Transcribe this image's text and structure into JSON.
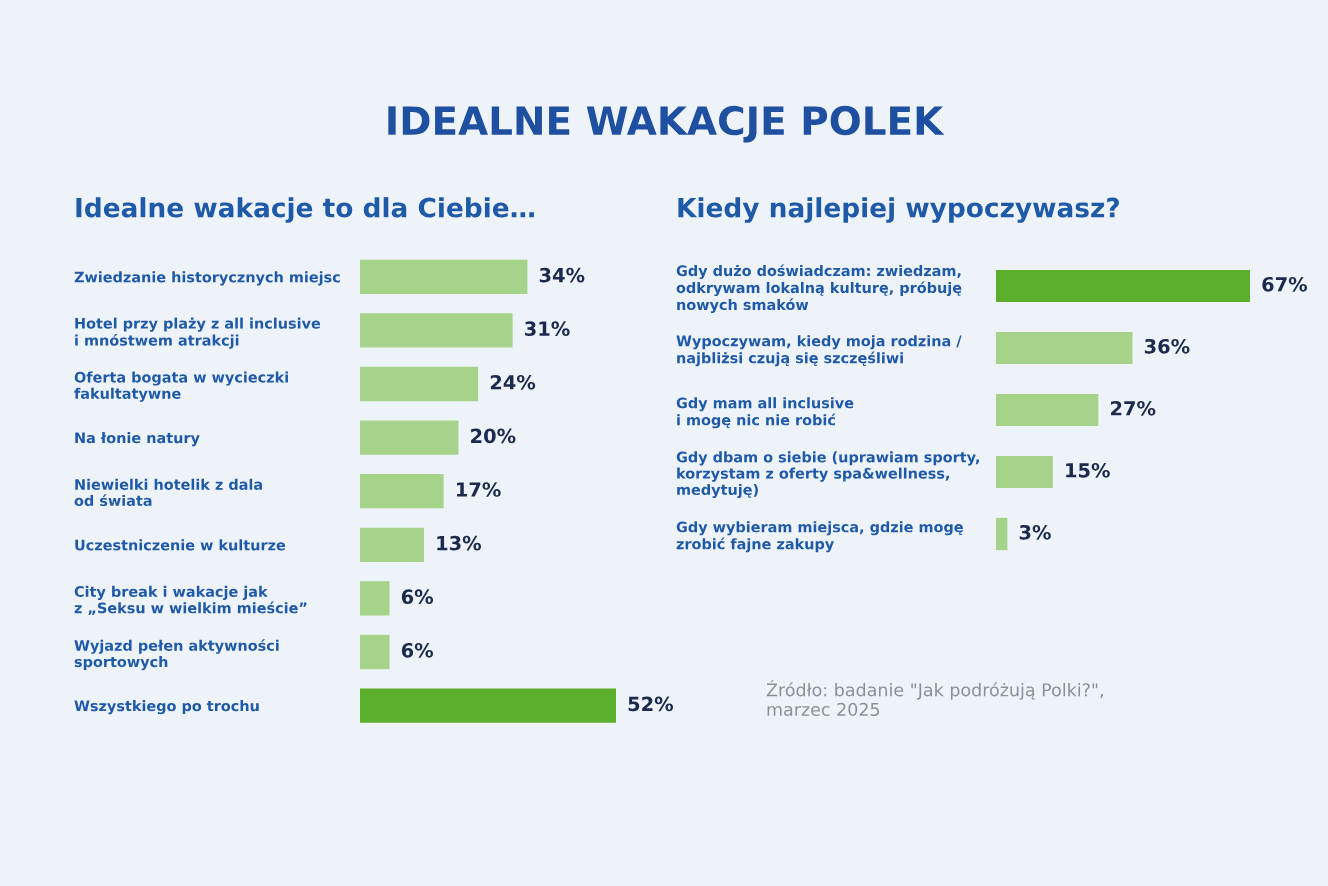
{
  "chart_data": [
    {
      "type": "bar",
      "orientation": "horizontal",
      "title": "IDEALNE WAKACJE POLEK",
      "subtitle": "Idealne wakacje to dla Ciebie…",
      "categories": [
        "Zwiedzanie historycznych miejsc",
        "Hotel przy plaży z all inclusive\ni mnóstwem atrakcji",
        "Oferta bogata w wycieczki\nfakultatywne",
        "Na łonie natury",
        "Niewielki hotelik z dala\nod świata",
        "Uczestniczenie w kulturze",
        "City break i wakacje jak\nz „Seksu w wielkim mieście”",
        "Wyjazd pełen aktywności\nsportowych",
        "Wszystkiego po trochu"
      ],
      "values": [
        34,
        31,
        24,
        20,
        17,
        13,
        6,
        6,
        52
      ],
      "colors": [
        "#a5d38a",
        "#a5d38a",
        "#a5d38a",
        "#a5d38a",
        "#a5d38a",
        "#a5d38a",
        "#a5d38a",
        "#a5d38a",
        "#5cae2d"
      ],
      "value_labels": [
        "34%",
        "31%",
        "24%",
        "20%",
        "17%",
        "13%",
        "6%",
        "6%",
        "52%"
      ],
      "grid": false,
      "legend": false
    },
    {
      "type": "bar",
      "orientation": "horizontal",
      "title": "Kiedy najlepiej wypoczywasz?",
      "categories": [
        "Gdy dużo doświadczam: zwiedzam,\nodkrywam lokalną kulturę, próbuję\nnowych smaków",
        "Wypoczywam, kiedy moja rodzina /\nnajbliżsi czują się szczęśliwi",
        "Gdy mam all inclusive\ni mogę nic nie robić",
        "Gdy dbam o siebie (uprawiam sporty,\nkorzystam z oferty spa&wellness,\nmedytuję)",
        "Gdy wybieram miejsca, gdzie mogę\nzrobić fajne zakupy"
      ],
      "values": [
        67,
        36,
        27,
        15,
        3
      ],
      "colors": [
        "#5cae2d",
        "#a5d38a",
        "#a5d38a",
        "#a5d38a",
        "#a5d38a"
      ],
      "value_labels": [
        "67%",
        "36%",
        "27%",
        "15%",
        "3%"
      ],
      "annotations": [
        "Źródło: badanie \"Jak podróżują Polki?\",\nmarzec 2025"
      ],
      "grid": false,
      "legend": false
    }
  ]
}
